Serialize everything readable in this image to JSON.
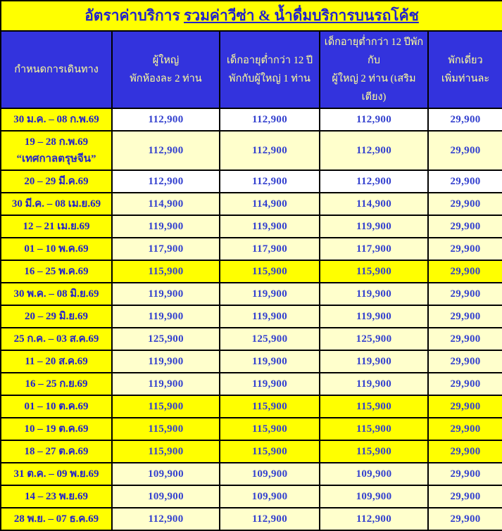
{
  "title": {
    "prefix": "อัตราค่าบริการ ",
    "underlined": "รวมค่าวีซ่า & น้ำดื่มบริการบนรถโค้ช"
  },
  "columns": [
    {
      "line1": "กำหนดการเดินทาง",
      "line2": ""
    },
    {
      "line1": "ผู้ใหญ่",
      "line2": "พักห้องละ 2 ท่าน"
    },
    {
      "line1": "เด็กอายุต่ำกว่า 12 ปี",
      "line2": "พักกับผู้ใหญ่ 1 ท่าน"
    },
    {
      "line1": "เด็กอายุต่ำกว่า 12 ปีพักกับ",
      "line2": "ผู้ใหญ่ 2 ท่าน (เสริมเตียง)"
    },
    {
      "line1": "พักเดี่ยว",
      "line2": "เพิ่มท่านละ"
    }
  ],
  "rows": [
    {
      "date_lines": [
        "30 ม.ค. – 08 ก.พ.69"
      ],
      "adult": "112,900",
      "child_1adult": "112,900",
      "child_2adult": "112,900",
      "single": "29,900",
      "bg": "white",
      "tall": false
    },
    {
      "date_lines": [
        "19 – 28 ก.พ.69",
        "“เทศกาลตรุษจีน”"
      ],
      "adult": "112,900",
      "child_1adult": "112,900",
      "child_2adult": "112,900",
      "single": "29,900",
      "bg": "cream",
      "tall": true
    },
    {
      "date_lines": [
        "20 – 29 มี.ค.69"
      ],
      "adult": "112,900",
      "child_1adult": "112,900",
      "child_2adult": "112,900",
      "single": "29,900",
      "bg": "white",
      "tall": false
    },
    {
      "date_lines": [
        "30 มี.ค. – 08 เม.ย.69"
      ],
      "adult": "114,900",
      "child_1adult": "114,900",
      "child_2adult": "114,900",
      "single": "29,900",
      "bg": "cream",
      "tall": false
    },
    {
      "date_lines": [
        "12 – 21 เม.ย.69"
      ],
      "adult": "119,900",
      "child_1adult": "119,900",
      "child_2adult": "119,900",
      "single": "29,900",
      "bg": "cream",
      "tall": false
    },
    {
      "date_lines": [
        "01 – 10 พ.ค.69"
      ],
      "adult": "117,900",
      "child_1adult": "117,900",
      "child_2adult": "117,900",
      "single": "29,900",
      "bg": "cream",
      "tall": false
    },
    {
      "date_lines": [
        "16 – 25 พ.ค.69"
      ],
      "adult": "115,900",
      "child_1adult": "115,900",
      "child_2adult": "115,900",
      "single": "29,900",
      "bg": "yellow",
      "tall": false
    },
    {
      "date_lines": [
        "30 พ.ค. – 08 มิ.ย.69"
      ],
      "adult": "119,900",
      "child_1adult": "119,900",
      "child_2adult": "119,900",
      "single": "29,900",
      "bg": "cream",
      "tall": false
    },
    {
      "date_lines": [
        "20 – 29 มิ.ย.69"
      ],
      "adult": "119,900",
      "child_1adult": "119,900",
      "child_2adult": "119,900",
      "single": "29,900",
      "bg": "cream",
      "tall": false
    },
    {
      "date_lines": [
        "25 ก.ค. – 03 ส.ค.69"
      ],
      "adult": "125,900",
      "child_1adult": "125,900",
      "child_2adult": "125,900",
      "single": "29,900",
      "bg": "cream",
      "tall": false
    },
    {
      "date_lines": [
        "11 – 20 ส.ค.69"
      ],
      "adult": "119,900",
      "child_1adult": "119,900",
      "child_2adult": "119,900",
      "single": "29,900",
      "bg": "cream",
      "tall": false
    },
    {
      "date_lines": [
        "16 – 25 ก.ย.69"
      ],
      "adult": "119,900",
      "child_1adult": "119,900",
      "child_2adult": "119,900",
      "single": "29,900",
      "bg": "cream",
      "tall": false
    },
    {
      "date_lines": [
        "01 – 10 ต.ค.69"
      ],
      "adult": "115,900",
      "child_1adult": "115,900",
      "child_2adult": "115,900",
      "single": "29,900",
      "bg": "yellow",
      "tall": false
    },
    {
      "date_lines": [
        "10 – 19 ต.ค.69"
      ],
      "adult": "115,900",
      "child_1adult": "115,900",
      "child_2adult": "115,900",
      "single": "29,900",
      "bg": "yellow",
      "tall": false
    },
    {
      "date_lines": [
        "18 – 27 ต.ค.69"
      ],
      "adult": "115,900",
      "child_1adult": "115,900",
      "child_2adult": "115,900",
      "single": "29,900",
      "bg": "yellow",
      "tall": false
    },
    {
      "date_lines": [
        "31 ต.ค. – 09 พ.ย.69"
      ],
      "adult": "109,900",
      "child_1adult": "109,900",
      "child_2adult": "109,900",
      "single": "29,900",
      "bg": "cream",
      "tall": false
    },
    {
      "date_lines": [
        "14 – 23 พ.ย.69"
      ],
      "adult": "109,900",
      "child_1adult": "109,900",
      "child_2adult": "109,900",
      "single": "29,900",
      "bg": "cream",
      "tall": false
    },
    {
      "date_lines": [
        "28 พ.ย. – 07 ธ.ค.69"
      ],
      "adult": "112,900",
      "child_1adult": "112,900",
      "child_2adult": "112,900",
      "single": "29,900",
      "bg": "cream",
      "tall": false
    }
  ],
  "colors": {
    "yellow": "#ffff00",
    "cream": "#ffffcc",
    "white": "#ffffff",
    "blue_bg": "#3333dd",
    "header_text": "#ffff99",
    "title_text": "#2222cc",
    "date_text": "#2222cc",
    "price_text": "#3340cf",
    "border": "#000000"
  }
}
